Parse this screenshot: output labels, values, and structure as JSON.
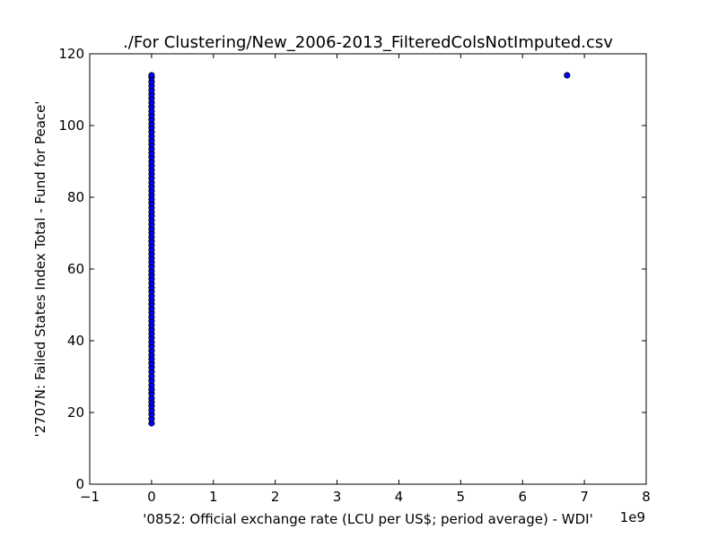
{
  "chart_data": {
    "type": "scatter",
    "title": "./For Clustering/New_2006-2013_FilteredColsNotImputed.csv",
    "xlabel": "'0852: Official exchange rate  (LCU per US$; period average) - WDI'",
    "ylabel": "'2707N: Failed States Index Total - Fund for Peace'",
    "x_offset_label": "1e9",
    "xlim": [
      -1,
      8
    ],
    "ylim": [
      0,
      120
    ],
    "x_ticks": [
      -1,
      0,
      1,
      2,
      3,
      4,
      5,
      6,
      7,
      8
    ],
    "x_tick_labels": [
      "−1",
      "0",
      "1",
      "2",
      "3",
      "4",
      "5",
      "6",
      "7",
      "8"
    ],
    "y_ticks": [
      0,
      20,
      40,
      60,
      80,
      100,
      120
    ],
    "y_tick_labels": [
      "0",
      "20",
      "40",
      "60",
      "80",
      "100",
      "120"
    ],
    "grid": false,
    "marker_color": "#0000ff",
    "marker_edge": "#000000",
    "points": [
      [
        0,
        17.0
      ],
      [
        0,
        18.2
      ],
      [
        0,
        19.5
      ],
      [
        0,
        20.6
      ],
      [
        0,
        21.8
      ],
      [
        0,
        22.9
      ],
      [
        0,
        24.0
      ],
      [
        0,
        25.3
      ],
      [
        0,
        26.4
      ],
      [
        0,
        27.6
      ],
      [
        0,
        28.9
      ],
      [
        0,
        30.1
      ],
      [
        0,
        31.4
      ],
      [
        0,
        32.6
      ],
      [
        0,
        33.7
      ],
      [
        0,
        34.9
      ],
      [
        0,
        36.0
      ],
      [
        0,
        37.2
      ],
      [
        0,
        38.5
      ],
      [
        0,
        39.6
      ],
      [
        0,
        40.8
      ],
      [
        0,
        42.0
      ],
      [
        0,
        43.1
      ],
      [
        0,
        44.3
      ],
      [
        0,
        45.5
      ],
      [
        0,
        46.6
      ],
      [
        0,
        47.8
      ],
      [
        0,
        49.0
      ],
      [
        0,
        50.2
      ],
      [
        0,
        51.3
      ],
      [
        0,
        52.5
      ],
      [
        0,
        53.7
      ],
      [
        0,
        54.8
      ],
      [
        0,
        56.0
      ],
      [
        0,
        57.2
      ],
      [
        0,
        58.4
      ],
      [
        0,
        59.5
      ],
      [
        0,
        60.7
      ],
      [
        0,
        61.9
      ],
      [
        0,
        63.0
      ],
      [
        0,
        64.2
      ],
      [
        0,
        65.4
      ],
      [
        0,
        66.6
      ],
      [
        0,
        67.7
      ],
      [
        0,
        68.9
      ],
      [
        0,
        70.1
      ],
      [
        0,
        71.2
      ],
      [
        0,
        72.4
      ],
      [
        0,
        73.6
      ],
      [
        0,
        74.8
      ],
      [
        0,
        75.9
      ],
      [
        0,
        77.1
      ],
      [
        0,
        78.3
      ],
      [
        0,
        79.4
      ],
      [
        0,
        80.6
      ],
      [
        0,
        81.8
      ],
      [
        0,
        83.0
      ],
      [
        0,
        84.1
      ],
      [
        0,
        85.3
      ],
      [
        0,
        86.5
      ],
      [
        0,
        87.6
      ],
      [
        0,
        88.8
      ],
      [
        0,
        90.0
      ],
      [
        0,
        91.2
      ],
      [
        0,
        92.3
      ],
      [
        0,
        93.5
      ],
      [
        0,
        94.7
      ],
      [
        0,
        95.8
      ],
      [
        0,
        97.0
      ],
      [
        0,
        98.2
      ],
      [
        0,
        99.4
      ],
      [
        0,
        100.5
      ],
      [
        0,
        101.7
      ],
      [
        0,
        102.9
      ],
      [
        0,
        104.0
      ],
      [
        0,
        105.2
      ],
      [
        0,
        106.4
      ],
      [
        0,
        107.6
      ],
      [
        0,
        108.7
      ],
      [
        0,
        109.9
      ],
      [
        0,
        111.1
      ],
      [
        0,
        112.2
      ],
      [
        0,
        113.4
      ],
      [
        0,
        114.0
      ],
      [
        6.72,
        114.0
      ]
    ]
  }
}
